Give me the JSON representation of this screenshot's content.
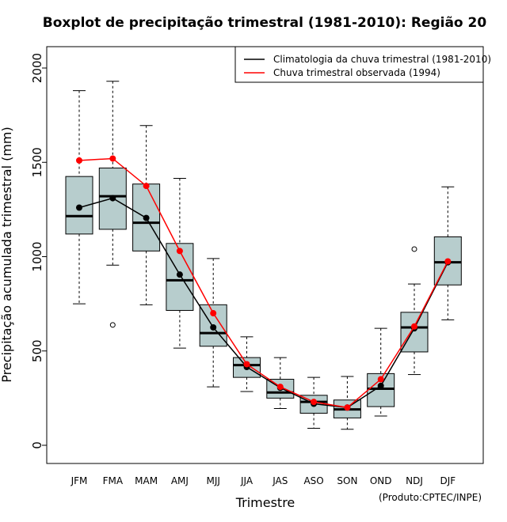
{
  "chart_data": {
    "type": "boxplot",
    "title": "Boxplot de precipitação trimestral (1981-2010): Região 20",
    "xlabel": "Trimestre",
    "ylabel": "Precipitação acumulada trimestral (mm)",
    "credit": "(Produto:CPTEC/INPE)",
    "ylim": [
      -100,
      2100
    ],
    "yticks": [
      0,
      500,
      1000,
      1500,
      2000
    ],
    "ytick_labels": [
      "0",
      "500",
      "1000",
      "1500",
      "2000"
    ],
    "categories": [
      "JFM",
      "FMA",
      "MAM",
      "AMJ",
      "MJJ",
      "JJA",
      "JAS",
      "ASO",
      "SON",
      "OND",
      "NDJ",
      "DJF"
    ],
    "boxes": [
      {
        "min": 750,
        "q1": 1120,
        "median": 1215,
        "q3": 1425,
        "max": 1880,
        "outliers": []
      },
      {
        "min": 955,
        "q1": 1145,
        "median": 1320,
        "q3": 1470,
        "max": 1930,
        "outliers": [
          638
        ]
      },
      {
        "min": 745,
        "q1": 1030,
        "median": 1180,
        "q3": 1385,
        "max": 1695,
        "outliers": []
      },
      {
        "min": 515,
        "q1": 715,
        "median": 875,
        "q3": 1070,
        "max": 1415,
        "outliers": []
      },
      {
        "min": 310,
        "q1": 525,
        "median": 595,
        "q3": 745,
        "max": 990,
        "outliers": []
      },
      {
        "min": 285,
        "q1": 360,
        "median": 425,
        "q3": 465,
        "max": 575,
        "outliers": []
      },
      {
        "min": 195,
        "q1": 250,
        "median": 280,
        "q3": 350,
        "max": 465,
        "outliers": []
      },
      {
        "min": 90,
        "q1": 170,
        "median": 230,
        "q3": 265,
        "max": 360,
        "outliers": []
      },
      {
        "min": 85,
        "q1": 145,
        "median": 190,
        "q3": 240,
        "max": 365,
        "outliers": []
      },
      {
        "min": 155,
        "q1": 205,
        "median": 300,
        "q3": 380,
        "max": 620,
        "outliers": []
      },
      {
        "min": 375,
        "q1": 495,
        "median": 625,
        "q3": 705,
        "max": 855,
        "outliers": [
          1040
        ]
      },
      {
        "min": 665,
        "q1": 850,
        "median": 970,
        "q3": 1105,
        "max": 1370,
        "outliers": []
      }
    ],
    "series": [
      {
        "name": "Climatologia da chuva trimestral (1981-2010)",
        "color": "#000000",
        "values": [
          1260,
          1310,
          1205,
          905,
          625,
          415,
          305,
          220,
          200,
          315,
          620,
          970
        ]
      },
      {
        "name": "Chuva trimestral observada (1994)",
        "color": "#ff0000",
        "values": [
          1510,
          1520,
          1375,
          1030,
          700,
          430,
          310,
          230,
          200,
          350,
          630,
          975
        ]
      }
    ],
    "box_fill": "#b7cdcd",
    "legend_position": "top-right"
  }
}
